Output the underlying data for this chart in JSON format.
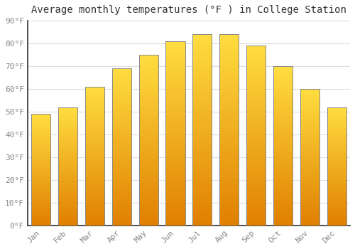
{
  "title": "Average monthly temperatures (°F ) in College Station",
  "months": [
    "Jan",
    "Feb",
    "Mar",
    "Apr",
    "May",
    "Jun",
    "Jul",
    "Aug",
    "Sep",
    "Oct",
    "Nov",
    "Dec"
  ],
  "values": [
    49,
    52,
    61,
    69,
    75,
    81,
    84,
    84,
    79,
    70,
    60,
    52
  ],
  "bar_color_main": "#FFA500",
  "bar_color_light": "#FFD966",
  "bar_color_dark": "#E08000",
  "bar_edge_color": "#888888",
  "background_color": "#FFFFFF",
  "grid_color": "#DDDDDD",
  "ylim": [
    0,
    90
  ],
  "yticks": [
    0,
    10,
    20,
    30,
    40,
    50,
    60,
    70,
    80,
    90
  ],
  "ytick_labels": [
    "0°F",
    "10°F",
    "20°F",
    "30°F",
    "40°F",
    "50°F",
    "60°F",
    "70°F",
    "80°F",
    "90°F"
  ],
  "title_fontsize": 10,
  "tick_fontsize": 8,
  "tick_color": "#888888",
  "font_family": "monospace",
  "bar_width": 0.72
}
